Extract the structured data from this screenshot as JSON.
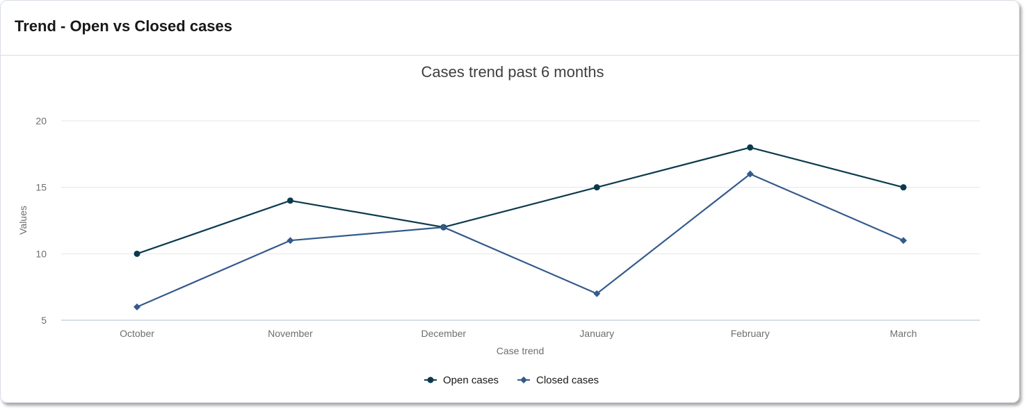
{
  "card": {
    "title": "Trend - Open vs Closed cases"
  },
  "chart_data": {
    "type": "line",
    "title": "Cases trend past 6 months",
    "xlabel": "Case trend",
    "ylabel": "Values",
    "categories": [
      "October",
      "November",
      "December",
      "January",
      "February",
      "March"
    ],
    "y_ticks": [
      5,
      10,
      15,
      20
    ],
    "ylim": [
      5,
      20
    ],
    "grid": true,
    "legend_position": "bottom-center",
    "series": [
      {
        "name": "Open cases",
        "values": [
          10,
          14,
          12,
          15,
          18,
          15
        ],
        "color": "#0b3a4e",
        "marker": "circle"
      },
      {
        "name": "Closed cases",
        "values": [
          6,
          11,
          12,
          7,
          16,
          11
        ],
        "color": "#335a8c",
        "marker": "diamond"
      }
    ]
  }
}
